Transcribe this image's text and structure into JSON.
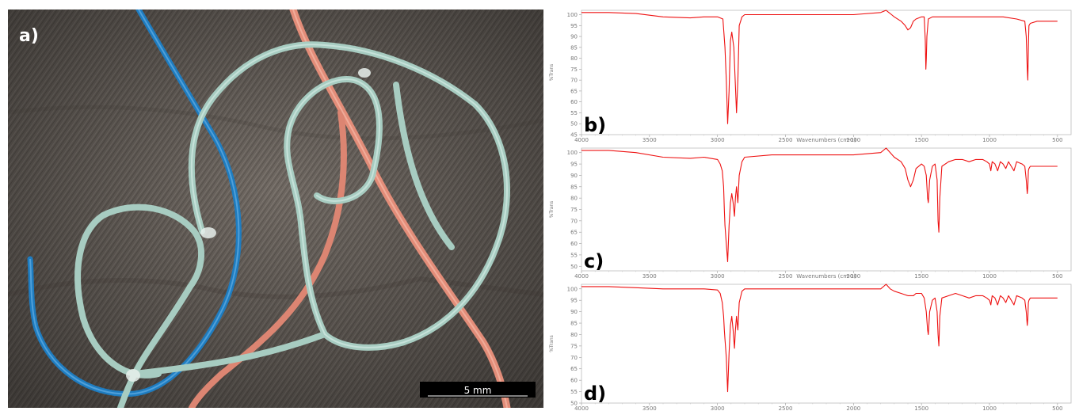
{
  "photo": {
    "panel_label": "a)",
    "scale_bar_label": "5 mm"
  },
  "colors": {
    "spectrum_line": "#ee1111",
    "fiber_blue": "#1f7fc4",
    "fiber_pink": "#e08a78",
    "fiber_green": "#a9cdc2",
    "background_fabric": "#6e6761",
    "scale_bar": "#000000"
  },
  "chart_data": [
    {
      "type": "line",
      "panel_label": "b)",
      "xlabel": "Wavenumbers (cm-1)",
      "ylabel": "%Trans",
      "xlim": [
        4000,
        400
      ],
      "ylim": [
        45,
        102
      ],
      "x_ticks": [
        4000,
        3500,
        3000,
        2500,
        2000,
        1500,
        1000,
        500
      ],
      "x_tick_labels": [
        "4000",
        "3500",
        "3000",
        "2500",
        "2000",
        "1500",
        "1000",
        "500"
      ],
      "y_ticks": [
        45,
        50,
        55,
        60,
        65,
        70,
        75,
        80,
        85,
        90,
        95,
        100
      ],
      "y_tick_labels": [
        "45",
        "50",
        "55",
        "60",
        "65",
        "70",
        "75",
        "80",
        "85",
        "90",
        "95",
        "100"
      ],
      "series": [
        {
          "x": [
            4000,
            3800,
            3600,
            3400,
            3200,
            3100,
            3000,
            2960,
            2945,
            2935,
            2925,
            2915,
            2905,
            2895,
            2880,
            2870,
            2860,
            2850,
            2840,
            2820,
            2800,
            2600,
            2400,
            2200,
            2000,
            1800,
            1760,
            1740,
            1720,
            1700,
            1650,
            1620,
            1600,
            1580,
            1560,
            1540,
            1500,
            1480,
            1472,
            1468,
            1464,
            1460,
            1450,
            1420,
            1380,
            1300,
            1200,
            1100,
            1000,
            900,
            800,
            740,
            730,
            722,
            718,
            714,
            710,
            700,
            650,
            600,
            550,
            500
          ],
          "y": [
            101,
            101,
            100.5,
            99,
            98.5,
            99,
            99,
            98,
            85,
            70,
            50,
            65,
            88,
            92,
            85,
            70,
            55,
            70,
            95,
            99,
            100,
            100,
            100,
            100,
            100,
            101,
            102,
            101,
            100,
            99,
            97,
            95,
            93,
            94,
            97,
            98,
            99,
            99,
            88,
            75,
            80,
            90,
            98,
            99,
            99,
            99,
            99,
            99,
            99,
            99,
            98,
            97,
            90,
            75,
            70,
            85,
            95,
            96,
            97,
            97,
            97,
            97
          ]
        }
      ]
    },
    {
      "type": "line",
      "panel_label": "c)",
      "xlabel": "Wavenumbers (cm-1)",
      "ylabel": "%Trans",
      "xlim": [
        4000,
        400
      ],
      "ylim": [
        48,
        102
      ],
      "x_ticks": [
        4000,
        3500,
        3000,
        2500,
        2000,
        1500,
        1000,
        500
      ],
      "x_tick_labels": [
        "4000",
        "3500",
        "3000",
        "2500",
        "2000",
        "1500",
        "1000",
        "500"
      ],
      "y_ticks": [
        50,
        55,
        60,
        65,
        70,
        75,
        80,
        85,
        90,
        95,
        100
      ],
      "y_tick_labels": [
        "50",
        "55",
        "60",
        "65",
        "70",
        "75",
        "80",
        "85",
        "90",
        "95",
        "100"
      ],
      "series": [
        {
          "x": [
            4000,
            3800,
            3600,
            3400,
            3200,
            3100,
            3000,
            2980,
            2965,
            2955,
            2950,
            2945,
            2935,
            2925,
            2915,
            2905,
            2895,
            2885,
            2875,
            2868,
            2860,
            2850,
            2840,
            2820,
            2800,
            2600,
            2400,
            2200,
            2000,
            1800,
            1760,
            1730,
            1700,
            1650,
            1620,
            1600,
            1580,
            1560,
            1540,
            1500,
            1480,
            1465,
            1455,
            1450,
            1440,
            1420,
            1400,
            1385,
            1378,
            1372,
            1365,
            1350,
            1300,
            1250,
            1200,
            1150,
            1100,
            1050,
            1020,
            1000,
            990,
            980,
            960,
            940,
            920,
            900,
            880,
            860,
            840,
            820,
            800,
            760,
            740,
            730,
            722,
            718,
            714,
            710,
            700,
            650,
            600,
            550,
            500
          ],
          "y": [
            101,
            101,
            100,
            98,
            97.5,
            98,
            97,
            95,
            92,
            85,
            75,
            68,
            60,
            52,
            68,
            78,
            82,
            78,
            72,
            80,
            85,
            78,
            90,
            96,
            98,
            99,
            99,
            99,
            99,
            100,
            102,
            100,
            98,
            96,
            93,
            88,
            85,
            88,
            93,
            95,
            94,
            90,
            80,
            78,
            88,
            94,
            95,
            88,
            70,
            65,
            80,
            94,
            96,
            97,
            97,
            96,
            97,
            97,
            96,
            95,
            92,
            96,
            95,
            92,
            96,
            95,
            93,
            96,
            94,
            92,
            96,
            95,
            94,
            88,
            82,
            85,
            92,
            93,
            94,
            94,
            94,
            94,
            94
          ]
        }
      ]
    },
    {
      "type": "line",
      "panel_label": "d)",
      "xlabel": "",
      "ylabel": "%Trans",
      "xlim": [
        4000,
        400
      ],
      "ylim": [
        50,
        102
      ],
      "x_ticks": [
        4000,
        3500,
        3000,
        2500,
        2000,
        1500,
        1000,
        500
      ],
      "x_tick_labels": [
        "4000",
        "3500",
        "3000",
        "2500",
        "2000",
        "1500",
        "1000",
        "500"
      ],
      "y_ticks": [
        50,
        55,
        60,
        65,
        70,
        75,
        80,
        85,
        90,
        95,
        100
      ],
      "y_tick_labels": [
        "50",
        "55",
        "60",
        "65",
        "70",
        "75",
        "80",
        "85",
        "90",
        "95",
        "100"
      ],
      "series": [
        {
          "x": [
            4000,
            3800,
            3600,
            3400,
            3200,
            3100,
            3000,
            2980,
            2965,
            2955,
            2950,
            2945,
            2935,
            2925,
            2915,
            2905,
            2895,
            2885,
            2875,
            2868,
            2860,
            2850,
            2840,
            2820,
            2800,
            2600,
            2400,
            2200,
            2000,
            1800,
            1760,
            1730,
            1700,
            1650,
            1600,
            1560,
            1540,
            1500,
            1480,
            1465,
            1455,
            1450,
            1440,
            1420,
            1400,
            1385,
            1378,
            1372,
            1365,
            1350,
            1300,
            1250,
            1200,
            1150,
            1100,
            1050,
            1020,
            1000,
            990,
            980,
            960,
            940,
            920,
            900,
            880,
            860,
            840,
            820,
            800,
            760,
            740,
            730,
            722,
            718,
            714,
            710,
            700,
            650,
            600,
            550,
            500
          ],
          "y": [
            101,
            101,
            100.5,
            100,
            100,
            100,
            99.5,
            98,
            94,
            88,
            82,
            78,
            70,
            55,
            72,
            84,
            88,
            82,
            74,
            82,
            88,
            82,
            94,
            99,
            100,
            100,
            100,
            100,
            100,
            100,
            102,
            100,
            99,
            98,
            97,
            97,
            98,
            98,
            96,
            90,
            82,
            80,
            90,
            95,
            96,
            90,
            80,
            75,
            88,
            96,
            97,
            98,
            97,
            96,
            97,
            97,
            96,
            95,
            93,
            97,
            96,
            93,
            97,
            96,
            94,
            97,
            95,
            93,
            97,
            96,
            95,
            90,
            84,
            87,
            94,
            95,
            96,
            96,
            96,
            96,
            96
          ]
        }
      ]
    }
  ]
}
